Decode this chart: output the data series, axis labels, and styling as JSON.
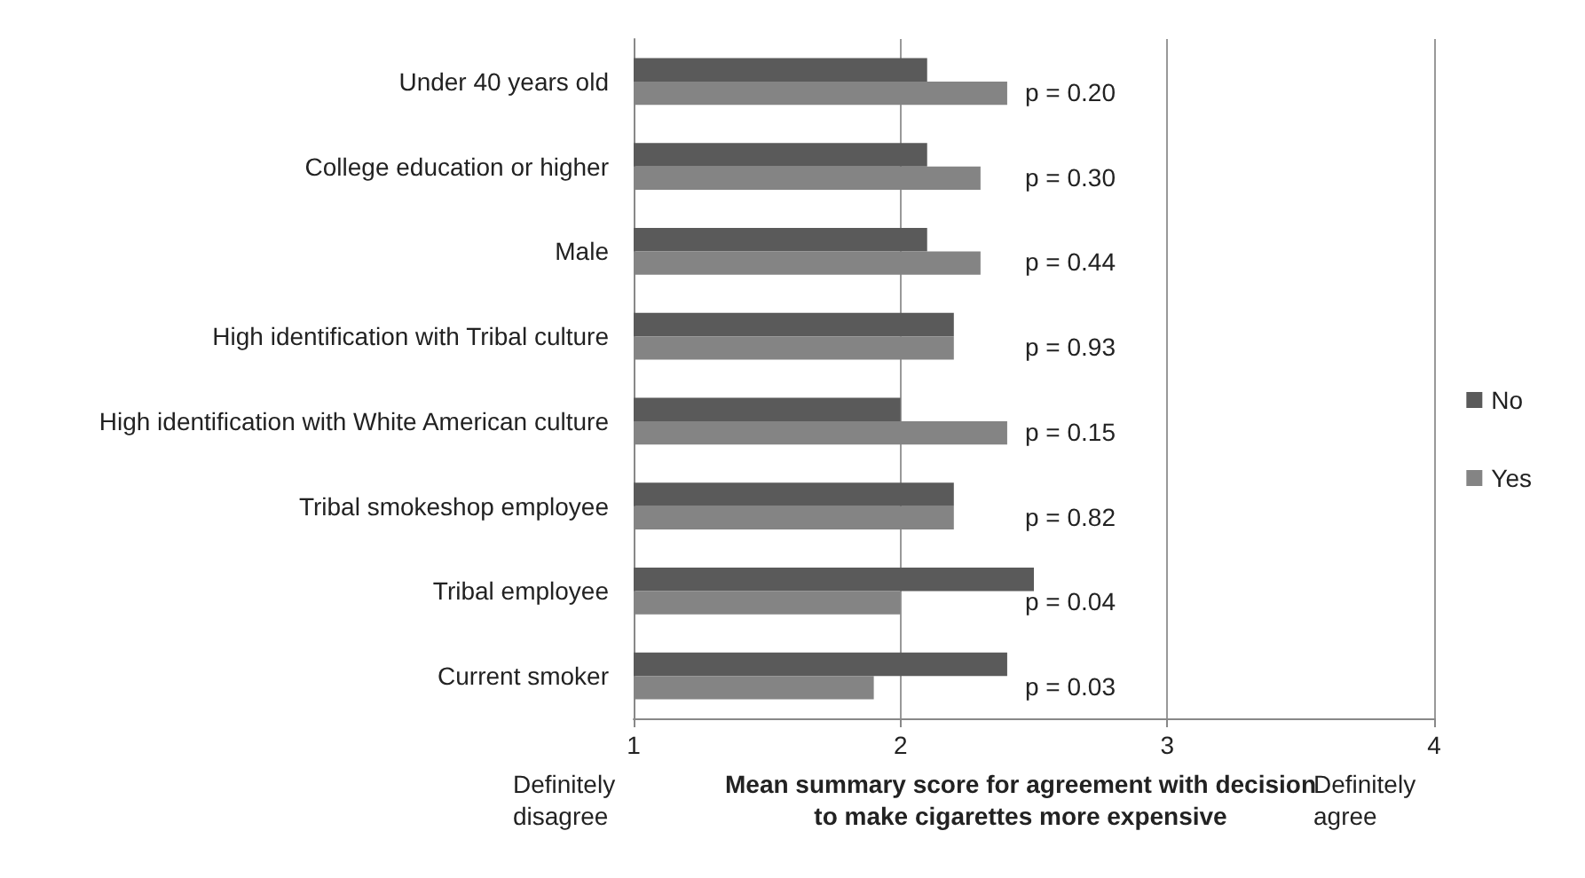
{
  "chart_data": {
    "type": "bar",
    "orientation": "horizontal",
    "categories": [
      "Under 40 years old",
      "College education or higher",
      "Male",
      "High identification with Tribal culture",
      "High identification with White American culture",
      "Tribal smokeshop employee",
      "Tribal employee",
      "Current smoker"
    ],
    "series": [
      {
        "name": "No",
        "color": "#5a5a5a",
        "values": [
          2.1,
          2.1,
          2.1,
          2.2,
          2.0,
          2.2,
          2.5,
          2.4
        ]
      },
      {
        "name": "Yes",
        "color": "#848484",
        "values": [
          2.4,
          2.3,
          2.3,
          2.2,
          2.4,
          2.2,
          2.0,
          1.9
        ]
      }
    ],
    "xlim": [
      1,
      4
    ],
    "xticks": [
      1,
      2,
      3,
      4
    ],
    "xlabel": "Mean summary score for agreement with decision to make cigarettes more expensive",
    "annotations": [
      "p = 0.20",
      "p = 0.30",
      "p = 0.44",
      "p = 0.93",
      "p = 0.15",
      "p = 0.82",
      "p = 0.04",
      "p = 0.03",
      "Definitely disagree",
      "Definitely agree"
    ],
    "grid": "x",
    "legend": "right"
  }
}
